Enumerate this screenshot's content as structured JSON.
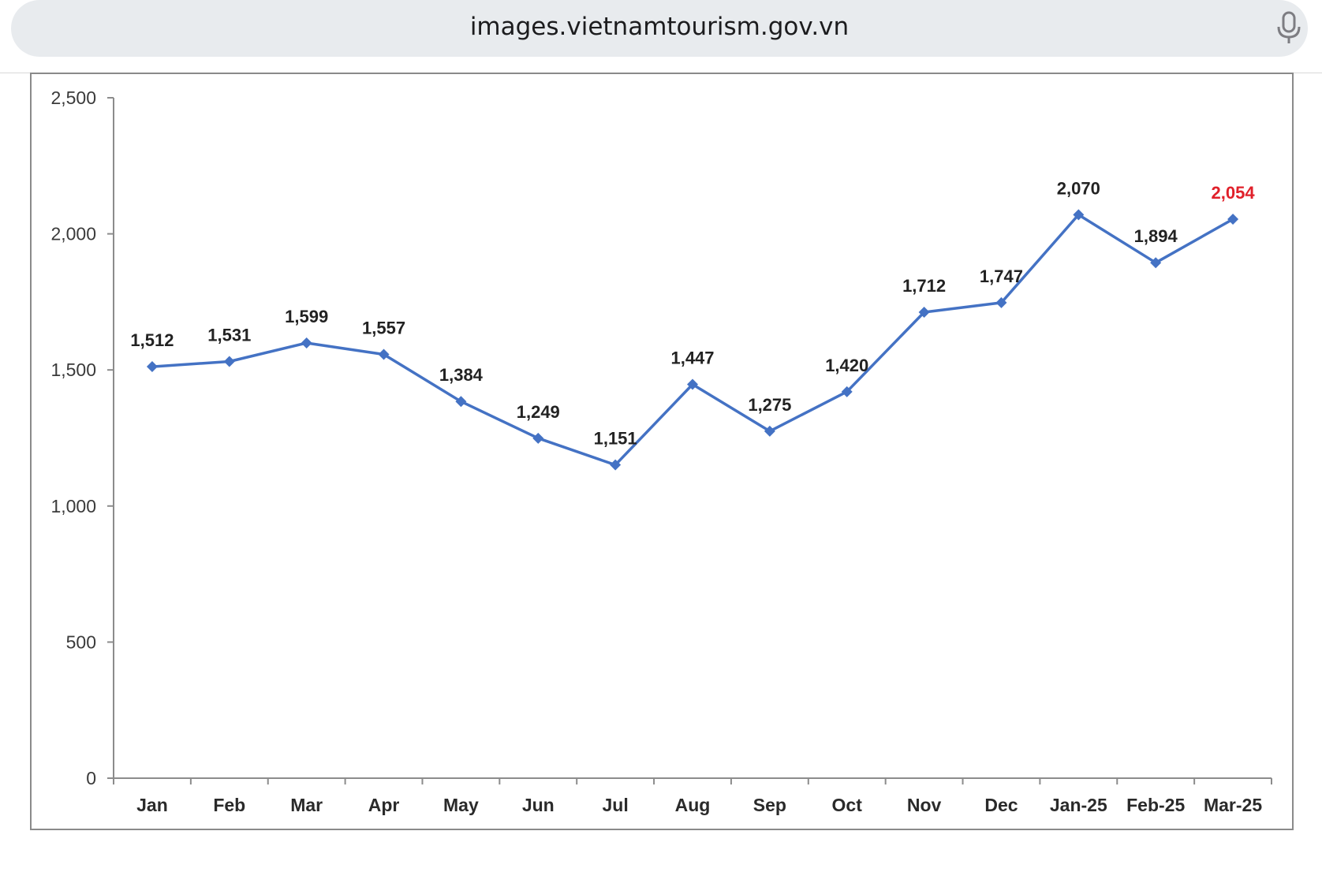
{
  "browser": {
    "url": "images.vietnamtourism.gov.vn",
    "mic_icon": "microphone-icon"
  },
  "colors": {
    "series_line": "#4472c4",
    "label_default": "#222222",
    "label_highlight": "#e0202a",
    "axis": "#8c8c8c"
  },
  "chart_data": {
    "type": "line",
    "categories": [
      "Jan",
      "Feb",
      "Mar",
      "Apr",
      "May",
      "Jun",
      "Jul",
      "Aug",
      "Sep",
      "Oct",
      "Nov",
      "Dec",
      "Jan-25",
      "Feb-25",
      "Mar-25"
    ],
    "series": [
      {
        "values": [
          1512,
          1531,
          1599,
          1557,
          1384,
          1249,
          1151,
          1447,
          1275,
          1420,
          1712,
          1747,
          2070,
          1894,
          2054
        ]
      }
    ],
    "data_labels": [
      "1,512",
      "1,531",
      "1,599",
      "1,557",
      "1,384",
      "1,249",
      "1,151",
      "1,447",
      "1,275",
      "1,420",
      "1,712",
      "1,747",
      "2,070",
      "1,894",
      "2,054"
    ],
    "highlighted_label_index": 14,
    "y_ticks": [
      0,
      500,
      1000,
      1500,
      2000,
      2500
    ],
    "y_tick_labels": [
      "0",
      "500",
      "1,000",
      "1,500",
      "2,000",
      "2,500"
    ],
    "ylim": [
      0,
      2500
    ],
    "marker": "diamond",
    "grid": false,
    "legend": "none"
  }
}
